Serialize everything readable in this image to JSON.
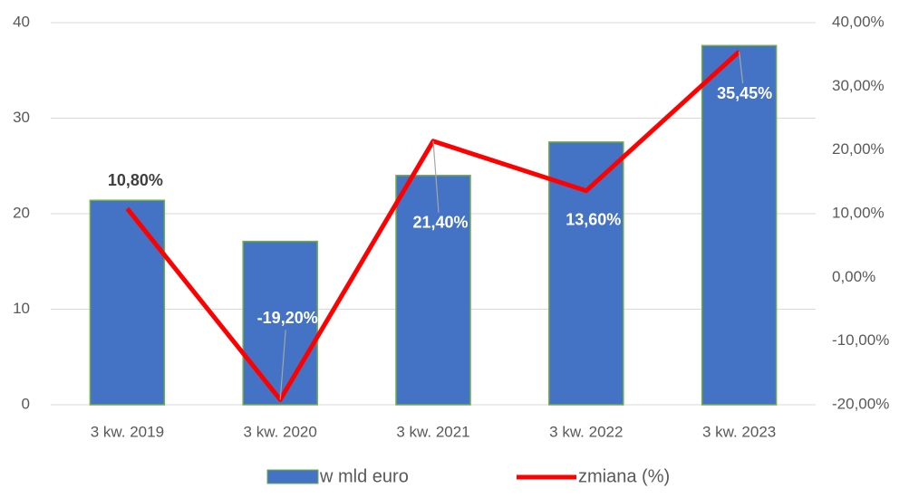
{
  "chart_data": {
    "type": "bar",
    "categories": [
      "3 kw. 2019",
      "3 kw. 2020",
      "3 kw. 2021",
      "3 kw. 2022",
      "3 kw. 2023"
    ],
    "series": [
      {
        "name": "w mld euro",
        "type": "bar",
        "color": "#4472c4",
        "values": [
          21.4,
          17.1,
          24,
          27.5,
          37.6
        ]
      },
      {
        "name": "zmiana (%)",
        "type": "line",
        "axis": "y2",
        "color": "#ff0000",
        "values": [
          10.8,
          -19.2,
          21.4,
          13.6,
          35.45
        ],
        "value_labels": [
          "10,80%",
          "-19,20%",
          "21,40%",
          "13,60%",
          "35,45%"
        ]
      }
    ],
    "ylim": [
      0,
      40
    ],
    "yticks": [
      0,
      10,
      20,
      30,
      40
    ],
    "y2lim": [
      -20,
      40
    ],
    "y2ticks": [
      {
        "value": -20,
        "label": "-20,00%"
      },
      {
        "value": -10,
        "label": "-10,00%"
      },
      {
        "value": 0,
        "label": "0,00%"
      },
      {
        "value": 10,
        "label": "10,00%"
      },
      {
        "value": 20,
        "label": "20,00%"
      },
      {
        "value": 30,
        "label": "30,00%"
      },
      {
        "value": 40,
        "label": "40,00%"
      }
    ],
    "grid": true,
    "legend": "bottom"
  }
}
